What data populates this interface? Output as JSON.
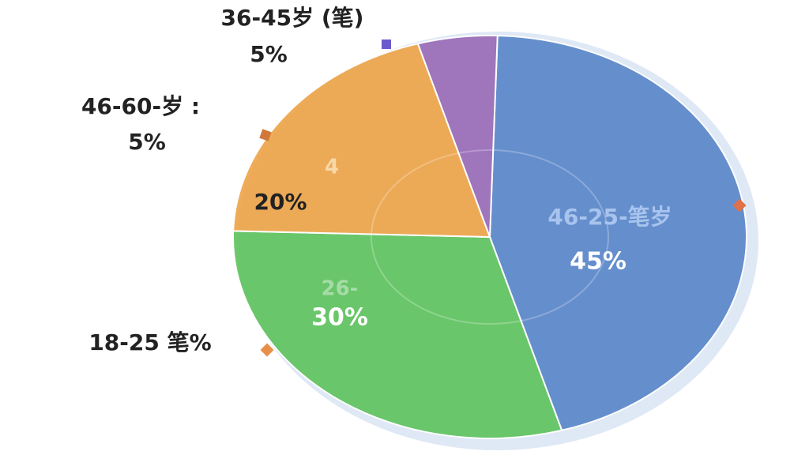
{
  "chart_data": {
    "type": "pie",
    "categories": [
      "46-25-笔岁",
      "26-",
      "4",
      "36-45岁 (笔)"
    ],
    "values": [
      45,
      30,
      20,
      5
    ],
    "value_labels": [
      "45%",
      "30%",
      "20%",
      "5%"
    ],
    "colors": [
      "#5b87c9",
      "#5fc45f",
      "#eea54a",
      "#9a6cb8"
    ],
    "annotations": [
      "46-60-岁 :",
      "5%",
      "18-25 笔%"
    ]
  }
}
